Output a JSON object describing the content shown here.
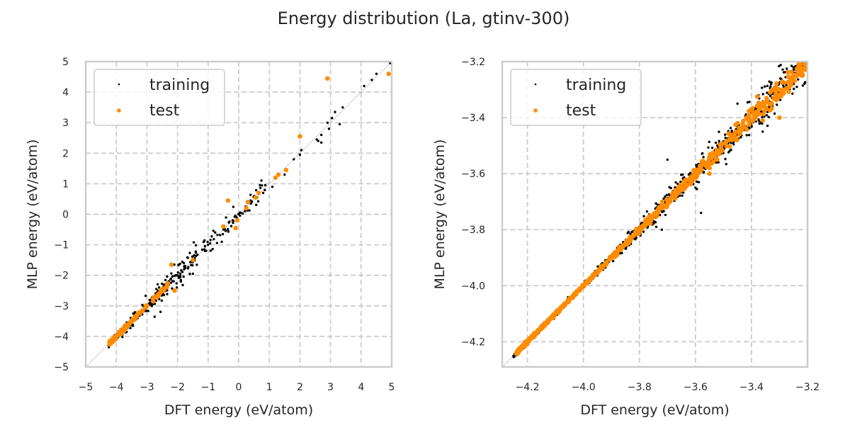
{
  "figure": {
    "title": "Energy distribution (La, gtinv-300)"
  },
  "colors": {
    "training": "#000000",
    "test": "#ff8c00",
    "grid": "#cccccc",
    "spine": "#cccccc",
    "diagonal": "#999999",
    "text": "#262626"
  },
  "chart_data": [
    {
      "type": "scatter",
      "panel": "left",
      "xlabel": "DFT energy (eV/atom)",
      "ylabel": "MLP energy (eV/atom)",
      "xlim": [
        -5,
        5
      ],
      "ylim": [
        -5,
        5
      ],
      "xticks": [
        "−5",
        "−4",
        "−3",
        "−2",
        "−1",
        "0",
        "1",
        "2",
        "3",
        "4",
        "5"
      ],
      "yticks": [
        "−5",
        "−4",
        "−3",
        "−2",
        "−1",
        "0",
        "1",
        "2",
        "3",
        "4",
        "5"
      ],
      "xtick_values": [
        -5,
        -4,
        -3,
        -2,
        -1,
        0,
        1,
        2,
        3,
        4,
        5
      ],
      "ytick_values": [
        -5,
        -4,
        -3,
        -2,
        -1,
        0,
        1,
        2,
        3,
        4,
        5
      ],
      "grid": true,
      "grid_style": "dashed",
      "diagonal": "y = x",
      "legend": {
        "placement": "top-left",
        "entries": [
          "training",
          "test"
        ]
      },
      "series": [
        {
          "name": "training",
          "description": "dense cloud along y=x from -4.2 to 5, sparser above 0",
          "points": [
            [
              4.95,
              4.95
            ],
            [
              4.5,
              4.6
            ],
            [
              4.35,
              4.4
            ],
            [
              4.1,
              4.2
            ],
            [
              3.4,
              3.5
            ],
            [
              3.15,
              3.35
            ],
            [
              2.9,
              3.0
            ],
            [
              2.95,
              2.8
            ],
            [
              3.3,
              2.95
            ],
            [
              3.05,
              3.15
            ],
            [
              2.7,
              2.6
            ],
            [
              2.6,
              2.4
            ],
            [
              2.55,
              2.45
            ],
            [
              2.7,
              2.35
            ],
            [
              2.05,
              2.1
            ],
            [
              2.0,
              1.95
            ],
            [
              1.8,
              1.8
            ],
            [
              1.5,
              1.3
            ],
            [
              1.2,
              1.2
            ],
            [
              1.1,
              0.9
            ],
            [
              0.8,
              0.7
            ],
            [
              0.6,
              0.55
            ],
            [
              0.4,
              0.35
            ],
            [
              0.2,
              0.1
            ],
            [
              0.0,
              0.0
            ],
            [
              -0.2,
              -0.2
            ],
            [
              -0.5,
              -0.5
            ],
            [
              -1.0,
              -1.0
            ],
            [
              -1.5,
              -1.5
            ],
            [
              -2.0,
              -2.0
            ],
            [
              -2.5,
              -2.5
            ],
            [
              -3.0,
              -3.0
            ],
            [
              -3.5,
              -3.5
            ],
            [
              -4.0,
              -4.0
            ]
          ]
        },
        {
          "name": "test",
          "description": "dense along y=x from -4.2 to -2.5, sparse above",
          "points": [
            [
              4.9,
              4.6
            ],
            [
              2.9,
              4.45
            ],
            [
              2.0,
              2.55
            ],
            [
              1.55,
              1.45
            ],
            [
              1.2,
              1.2
            ],
            [
              1.3,
              1.3
            ],
            [
              0.55,
              0.55
            ],
            [
              0.65,
              0.7
            ],
            [
              0.3,
              0.4
            ],
            [
              0.25,
              0.2
            ],
            [
              -0.35,
              0.45
            ],
            [
              -0.05,
              -0.2
            ],
            [
              -0.1,
              -0.45
            ],
            [
              -0.5,
              -0.4
            ],
            [
              -2.2,
              -1.65
            ],
            [
              -1.5,
              -1.5
            ],
            [
              -2.1,
              -2.5
            ],
            [
              -2.55,
              -2.5
            ],
            [
              -4.2,
              -4.2
            ]
          ]
        }
      ]
    },
    {
      "type": "scatter",
      "panel": "right",
      "xlabel": "DFT energy (eV/atom)",
      "ylabel": "MLP energy (eV/atom)",
      "xlim": [
        -4.29,
        -3.2
      ],
      "ylim": [
        -4.29,
        -3.2
      ],
      "xticks": [
        "−4.2",
        "−4.0",
        "−3.8",
        "−3.6",
        "−3.4",
        "−3.2"
      ],
      "yticks": [
        "−4.2",
        "−4.0",
        "−3.8",
        "−3.6",
        "−3.4",
        "−3.2"
      ],
      "xtick_values": [
        -4.2,
        -4.0,
        -3.8,
        -3.6,
        -3.4,
        -3.2
      ],
      "ytick_values": [
        -4.2,
        -4.0,
        -3.8,
        -3.6,
        -3.4,
        -3.2
      ],
      "grid": true,
      "grid_style": "dashed",
      "diagonal": "y = x",
      "legend": {
        "placement": "top-left",
        "entries": [
          "training",
          "test"
        ]
      },
      "series": [
        {
          "name": "training",
          "description": "dense band along y=x, spread growing above -3.9",
          "points": [
            [
              -3.7,
              -3.55
            ],
            [
              -3.6,
              -3.65
            ],
            [
              -3.45,
              -3.35
            ],
            [
              -3.3,
              -3.4
            ],
            [
              -3.74,
              -3.79
            ],
            [
              -3.72,
              -3.8
            ],
            [
              -3.58,
              -3.74
            ],
            [
              -3.36,
              -3.45
            ],
            [
              -3.25,
              -3.22
            ],
            [
              -3.22,
              -3.25
            ]
          ]
        },
        {
          "name": "test",
          "description": "dense band along y=x across the full range",
          "points": [
            [
              -3.3,
              -3.4
            ],
            [
              -3.45,
              -3.42
            ],
            [
              -3.55,
              -3.6
            ],
            [
              -3.22,
              -3.25
            ],
            [
              -3.2,
              -3.2
            ]
          ]
        }
      ]
    }
  ]
}
